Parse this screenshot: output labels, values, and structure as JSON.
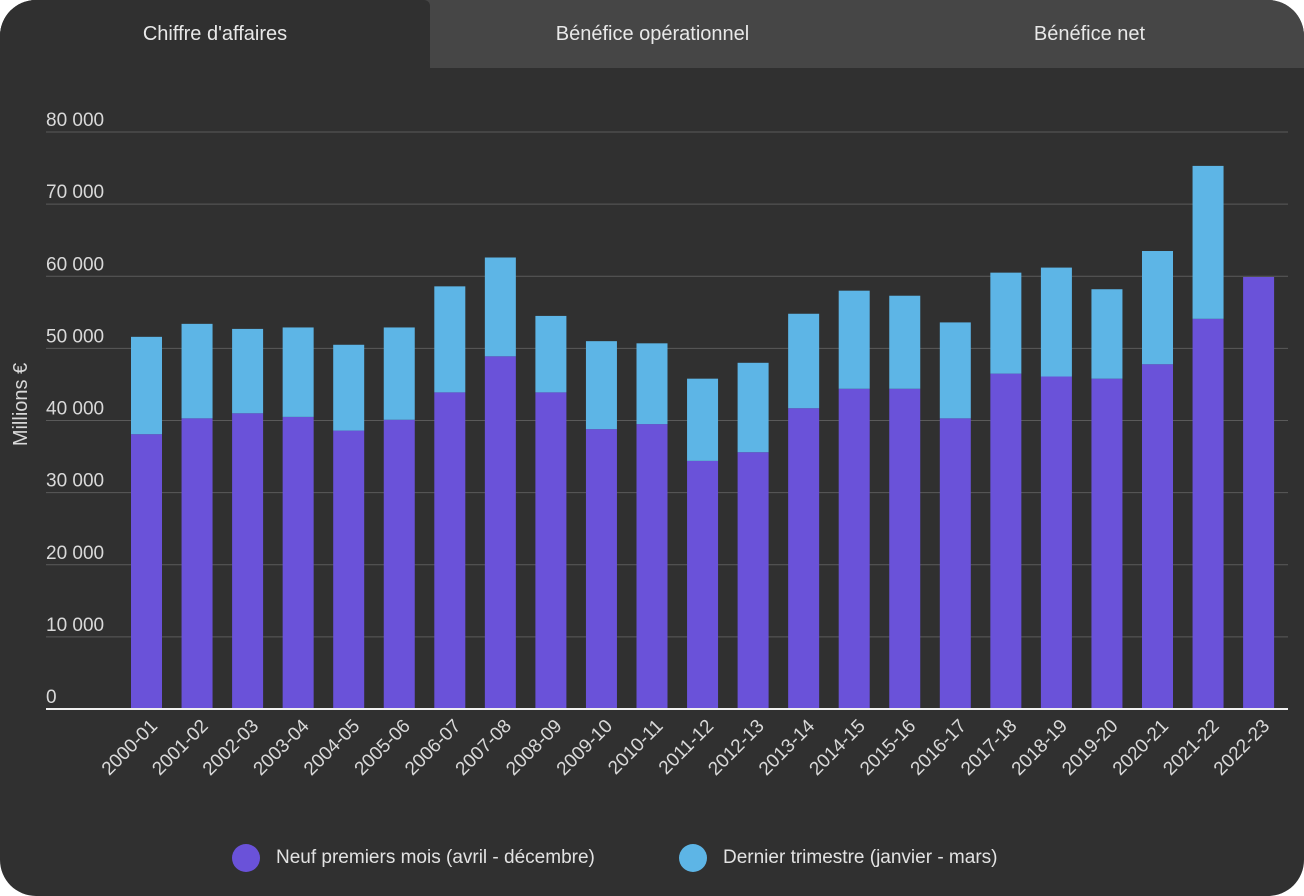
{
  "tabs": [
    {
      "label": "Chiffre d'affaires",
      "active": true
    },
    {
      "label": "Bénéfice opérationnel",
      "active": false
    },
    {
      "label": "Bénéfice net",
      "active": false
    }
  ],
  "colors": {
    "background": "#303030",
    "tab_bar": "#464646",
    "series1": "#6a52d9",
    "series2": "#5db5e6",
    "grid": "#5a5a5a"
  },
  "chart_data": {
    "type": "bar",
    "stacked": true,
    "ylabel": "Millions €",
    "ylim": [
      0,
      80000
    ],
    "yticks": [
      0,
      10000,
      20000,
      30000,
      40000,
      50000,
      60000,
      70000,
      80000
    ],
    "ytick_labels": [
      "0",
      "10 000",
      "20 000",
      "30 000",
      "40 000",
      "50 000",
      "60 000",
      "70 000",
      "80 000"
    ],
    "grid": true,
    "legend_position": "bottom",
    "categories": [
      "2000-01",
      "2001-02",
      "2002-03",
      "2003-04",
      "2004-05",
      "2005-06",
      "2006-07",
      "2007-08",
      "2008-09",
      "2009-10",
      "2010-11",
      "2011-12",
      "2012-13",
      "2013-14",
      "2014-15",
      "2015-16",
      "2016-17",
      "2017-18",
      "2018-19",
      "2019-20",
      "2020-21",
      "2021-22",
      "2022-23"
    ],
    "series": [
      {
        "name": "Neuf premiers mois (avril - décembre)",
        "values": [
          38100,
          40300,
          41000,
          40500,
          38600,
          40100,
          43900,
          48900,
          43900,
          38800,
          39500,
          34400,
          35600,
          41700,
          44400,
          44400,
          40300,
          46500,
          46100,
          45800,
          47800,
          54100,
          59900
        ]
      },
      {
        "name": "Dernier trimestre (janvier - mars)",
        "values": [
          13500,
          13100,
          11700,
          12400,
          11900,
          12800,
          14700,
          13700,
          10600,
          12200,
          11200,
          11400,
          12400,
          13100,
          13600,
          12900,
          13300,
          14000,
          15100,
          12400,
          15700,
          21200,
          0
        ]
      }
    ]
  }
}
